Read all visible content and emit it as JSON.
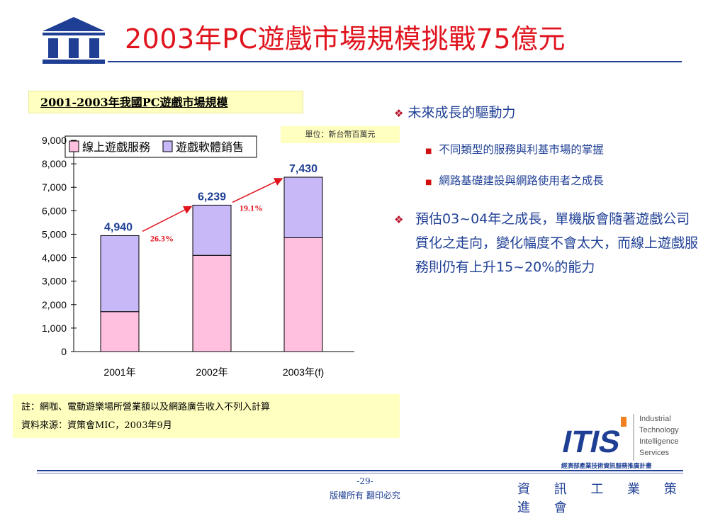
{
  "slide": {
    "title": "2003年PC遊戲市場規模挑戰75億元",
    "page_number": "-29-",
    "copyright": "版權所有 翻印必究",
    "org_name": "資 訊 工 業 策 進 會",
    "logo_text": "III",
    "itis_logo": {
      "mark": "ITIS",
      "lines": [
        "Industrial",
        "Technology",
        "Intelligence",
        "Services"
      ],
      "subtitle": "經濟部產業技術資訊服務推廣計畫"
    }
  },
  "chart_box": {
    "title": "2001-2003年我國PC遊戲市場規模",
    "unit": "單位：新台幣百萬元"
  },
  "chart_data": {
    "type": "bar",
    "stacked": true,
    "categories": [
      "2001年",
      "2002年",
      "2003年(f)"
    ],
    "series": [
      {
        "name": "線上遊戲服務",
        "values": [
          1700,
          4100,
          4850
        ],
        "color": "#ffc0e0"
      },
      {
        "name": "遊戲軟體銷售",
        "values": [
          3240,
          2139,
          2580
        ],
        "color": "#c8b8f8"
      }
    ],
    "totals": [
      "4,940",
      "6,239",
      "7,430"
    ],
    "growth_labels": [
      "26.3%",
      "19.1%"
    ],
    "yticks": [
      "0",
      "1,000",
      "2,000",
      "3,000",
      "4,000",
      "5,000",
      "6,000",
      "7,000",
      "8,000",
      "9,000"
    ],
    "ylim": [
      0,
      9000
    ],
    "legend_position": "top-left",
    "grid": false,
    "colors": {
      "total_label": "#1f3f95",
      "growth": "#e0141e"
    }
  },
  "bullets": [
    {
      "text": "未來成長的驅動力",
      "sub": [
        "不同類型的服務與利基市場的掌握",
        "網路基礎建設與網路使用者之成長"
      ]
    },
    {
      "text": "預估03~04年之成長，單機版會隨著遊戲公司質化之走向，變化幅度不會太大，而線上遊戲服務則仍有上升15~20%的能力",
      "sub": []
    }
  ],
  "notes": [
    "註：網咖、電動遊樂場所營業額以及網路廣告收入不列入計算",
    "資料來源：資策會MIC，2003年9月"
  ],
  "colors": {
    "title": "#e0141e",
    "accent": "#1f3f95",
    "note_bg": "#ffffc0"
  }
}
